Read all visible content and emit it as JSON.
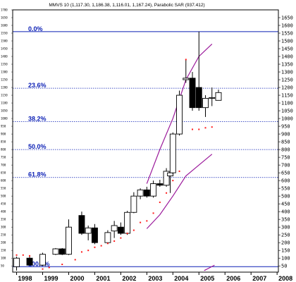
{
  "chart_data": {
    "type": "candlestick",
    "title": "MMVS 10 (1,117.30, 1,186.38, 1,116.01, 1,167.24), Parabolic SAR (937.412)",
    "x_tick_labels": [
      "1998",
      "1999",
      "2000",
      "2001",
      "2002",
      "2003",
      "2004",
      "2005",
      "2006",
      "2007",
      "2008"
    ],
    "ylim": [
      10,
      1700
    ],
    "y_tick_labels_right": [
      "1650",
      "1600",
      "1550",
      "1500",
      "1450",
      "1400",
      "1350",
      "1300",
      "1250",
      "1200",
      "1150",
      "1100",
      "1050",
      "1000",
      "950",
      "900",
      "850",
      "800",
      "750",
      "700",
      "650",
      "600",
      "550",
      "500",
      "450",
      "400",
      "350",
      "300",
      "250",
      "200",
      "150",
      "100",
      "50"
    ],
    "y_tick_labels_left": [
      "1700",
      "1650",
      "1600",
      "1550",
      "1500",
      "1450",
      "1400",
      "1350",
      "1300",
      "1250",
      "1200",
      "1150",
      "1100",
      "1050",
      "1000",
      "950",
      "900",
      "850",
      "800",
      "750",
      "700",
      "650",
      "600",
      "550",
      "500",
      "450",
      "400",
      "350",
      "300",
      "250",
      "200",
      "150",
      "100",
      "50"
    ],
    "fibonacci_levels": [
      {
        "label": "0.0%",
        "value": 1560
      },
      {
        "label": "23.6%",
        "value": 1195
      },
      {
        "label": "38.2%",
        "value": 980
      },
      {
        "label": "50.0%",
        "value": 800
      },
      {
        "label": "61.8%",
        "value": 620
      },
      {
        "label": "100.0%",
        "value": 45
      }
    ],
    "candles": [
      {
        "t": 1998.0,
        "o": 45,
        "h": 110,
        "l": 20,
        "c": 100
      },
      {
        "t": 1998.5,
        "o": 100,
        "h": 110,
        "l": 55,
        "c": 55
      },
      {
        "t": 1999.0,
        "o": 55,
        "h": 135,
        "l": 50,
        "c": 125
      },
      {
        "t": 1999.5,
        "o": 125,
        "h": 165,
        "l": 120,
        "c": 160
      },
      {
        "t": 1999.75,
        "o": 160,
        "h": 165,
        "l": 120,
        "c": 125
      },
      {
        "t": 2000.0,
        "o": 125,
        "h": 350,
        "l": 120,
        "c": 300
      },
      {
        "t": 2000.5,
        "o": 375,
        "h": 400,
        "l": 250,
        "c": 260
      },
      {
        "t": 2000.75,
        "o": 260,
        "h": 310,
        "l": 215,
        "c": 295
      },
      {
        "t": 2001.0,
        "o": 295,
        "h": 320,
        "l": 190,
        "c": 200
      },
      {
        "t": 2001.5,
        "o": 200,
        "h": 280,
        "l": 195,
        "c": 265
      },
      {
        "t": 2001.75,
        "o": 275,
        "h": 340,
        "l": 230,
        "c": 310
      },
      {
        "t": 2002.0,
        "o": 300,
        "h": 330,
        "l": 250,
        "c": 260
      },
      {
        "t": 2002.25,
        "o": 260,
        "h": 405,
        "l": 250,
        "c": 395
      },
      {
        "t": 2002.5,
        "o": 395,
        "h": 525,
        "l": 390,
        "c": 500
      },
      {
        "t": 2002.75,
        "o": 500,
        "h": 550,
        "l": 480,
        "c": 540
      },
      {
        "t": 2003.0,
        "o": 540,
        "h": 560,
        "l": 490,
        "c": 500
      },
      {
        "t": 2003.25,
        "o": 500,
        "h": 600,
        "l": 490,
        "c": 580
      },
      {
        "t": 2003.5,
        "o": 580,
        "h": 605,
        "l": 560,
        "c": 570
      },
      {
        "t": 2003.75,
        "o": 570,
        "h": 680,
        "l": 560,
        "c": 660
      },
      {
        "t": 2003.9,
        "o": 630,
        "h": 700,
        "l": 520,
        "c": 650
      },
      {
        "t": 2004.0,
        "o": 650,
        "h": 910,
        "l": 640,
        "c": 900
      },
      {
        "t": 2004.25,
        "o": 900,
        "h": 1180,
        "l": 890,
        "c": 1150
      },
      {
        "t": 2004.5,
        "o": 1250,
        "h": 1380,
        "l": 1230,
        "c": 1260
      },
      {
        "t": 2004.75,
        "o": 1260,
        "h": 1300,
        "l": 1050,
        "c": 1070
      },
      {
        "t": 2005.0,
        "o": 1200,
        "h": 1560,
        "l": 1050,
        "c": 1070
      },
      {
        "t": 2005.25,
        "o": 1070,
        "h": 1150,
        "l": 1010,
        "c": 1130
      },
      {
        "t": 2005.5,
        "o": 1130,
        "h": 1200,
        "l": 1080,
        "c": 1135
      },
      {
        "t": 2005.75,
        "o": 1117,
        "h": 1186,
        "l": 1116,
        "c": 1167
      }
    ],
    "parabolic_sar": [
      {
        "t": 1998.0,
        "v": 120
      },
      {
        "t": 1998.25,
        "v": 120
      },
      {
        "t": 1998.5,
        "v": 115
      },
      {
        "t": 1999.0,
        "v": 30
      },
      {
        "t": 1999.25,
        "v": 40
      },
      {
        "t": 1999.75,
        "v": 60
      },
      {
        "t": 2000.25,
        "v": 90
      },
      {
        "t": 2000.5,
        "v": 140
      },
      {
        "t": 2000.75,
        "v": 150
      },
      {
        "t": 2001.0,
        "v": 170
      },
      {
        "t": 2001.25,
        "v": 180
      },
      {
        "t": 2001.5,
        "v": 195
      },
      {
        "t": 2001.75,
        "v": 210
      },
      {
        "t": 2002.0,
        "v": 230
      },
      {
        "t": 2002.25,
        "v": 260
      },
      {
        "t": 2002.5,
        "v": 280
      },
      {
        "t": 2002.75,
        "v": 330
      },
      {
        "t": 2003.0,
        "v": 340
      },
      {
        "t": 2003.25,
        "v": 390
      },
      {
        "t": 2003.5,
        "v": 460
      },
      {
        "t": 2003.75,
        "v": 520
      },
      {
        "t": 2004.0,
        "v": 600
      },
      {
        "t": 2004.25,
        "v": 660
      },
      {
        "t": 2004.5,
        "v": 1380
      },
      {
        "t": 2004.75,
        "v": 930
      },
      {
        "t": 2005.0,
        "v": 930
      },
      {
        "t": 2005.25,
        "v": 940
      },
      {
        "t": 2005.5,
        "v": 945
      }
    ],
    "ma_lines": [
      {
        "name": "upper",
        "color": "#9b1a9b",
        "points": [
          [
            2003.0,
            580
          ],
          [
            2003.5,
            800
          ],
          [
            2004.0,
            1000
          ],
          [
            2004.5,
            1250
          ],
          [
            2005.0,
            1400
          ],
          [
            2005.5,
            1480
          ]
        ]
      },
      {
        "name": "lower",
        "color": "#9b1a9b",
        "points": [
          [
            2003.0,
            290
          ],
          [
            2003.5,
            380
          ],
          [
            2004.0,
            500
          ],
          [
            2004.5,
            630
          ],
          [
            2005.0,
            700
          ],
          [
            2005.5,
            770
          ]
        ]
      },
      {
        "name": "bottom",
        "color": "#9b1a9b",
        "points": [
          [
            2005.2,
            20
          ],
          [
            2005.6,
            55
          ]
        ]
      }
    ],
    "colors": {
      "fib_line": "#0b1fb5",
      "fib_label": "#0b1fb5",
      "sar_dot": "#ff1a1a",
      "up_candle": "#ffffff",
      "down_candle": "#000000",
      "grid": "#9aa0c8"
    }
  }
}
